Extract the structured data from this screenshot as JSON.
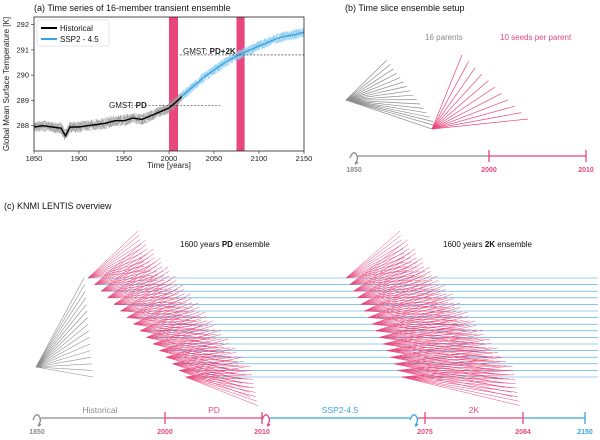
{
  "panel_a": {
    "title": "(a) Time series of 16-member transient ensemble",
    "xlabel": "Time [years]",
    "ylabel": "Global Mean Surface Temperature [K]",
    "legend": [
      {
        "label": "Historical",
        "color": "#000000"
      },
      {
        "label": "SSP2 - 4.5",
        "color": "#3aa3df"
      }
    ],
    "annot_pd_prefix": "GMST: ",
    "annot_pd_bold": "PD",
    "annot_2k_prefix": "GMST: ",
    "annot_2k_bold": "PD+2K"
  },
  "chart_data": {
    "type": "line",
    "xlim": [
      1850,
      2150
    ],
    "ylim": [
      287.0,
      292.3
    ],
    "xticks": [
      1850,
      1900,
      1950,
      2000,
      2050,
      2100,
      2150
    ],
    "yticks": [
      288,
      289,
      290,
      291,
      292
    ],
    "series": [
      {
        "name": "Historical",
        "color": "#000000",
        "x": [
          1850,
          1860,
          1870,
          1880,
          1885,
          1890,
          1900,
          1910,
          1920,
          1930,
          1940,
          1950,
          1960,
          1970,
          1980,
          1990,
          2000,
          2010,
          2014
        ],
        "y": [
          287.95,
          288.0,
          287.95,
          287.9,
          287.6,
          287.95,
          287.95,
          288.0,
          288.05,
          288.1,
          288.2,
          288.2,
          288.3,
          288.25,
          288.4,
          288.55,
          288.7,
          289.0,
          289.15
        ]
      },
      {
        "name": "SSP2 - 4.5",
        "color": "#3aa3df",
        "x": [
          2014,
          2020,
          2030,
          2040,
          2050,
          2060,
          2070,
          2080,
          2090,
          2100,
          2110,
          2120,
          2130,
          2140,
          2150
        ],
        "y": [
          289.15,
          289.35,
          289.65,
          289.95,
          290.2,
          290.45,
          290.65,
          290.85,
          291.0,
          291.15,
          291.3,
          291.45,
          291.55,
          291.6,
          291.7
        ]
      }
    ],
    "shaded_bands": [
      {
        "x0": 2000,
        "x1": 2010,
        "color": "#e8467c"
      },
      {
        "x0": 2075,
        "x1": 2084,
        "color": "#e8467c"
      }
    ],
    "reference_lines": [
      {
        "y": 288.8,
        "x0": 1950,
        "x1": 2058,
        "label": "PD"
      },
      {
        "y": 290.8,
        "x0": 2012,
        "x1": 2150,
        "label": "PD+2K"
      }
    ]
  },
  "panel_b": {
    "title": "(b) Time slice ensemble setup",
    "parents_label": "16 parents",
    "seeds_label": "10 seeds per parent",
    "timeline": [
      "1850",
      "2000",
      "2010"
    ]
  },
  "panel_c": {
    "title": "(c) KNMI LENTIS overview",
    "pd_prefix": "1600 years ",
    "pd_bold": "PD",
    "pd_suffix": " ensemble",
    "k2_prefix": "1600 years ",
    "k2_bold": "2K",
    "k2_suffix": " ensemble",
    "segments": [
      "Historical",
      "PD",
      "SSP2-4.5",
      "2K"
    ],
    "timeline": [
      "1850",
      "2000",
      "2010",
      "2075",
      "2084",
      "2150"
    ]
  },
  "colors": {
    "pink": "#e8467c",
    "blue": "#3aa3df",
    "gray": "#8c8c8c",
    "black": "#000000"
  }
}
